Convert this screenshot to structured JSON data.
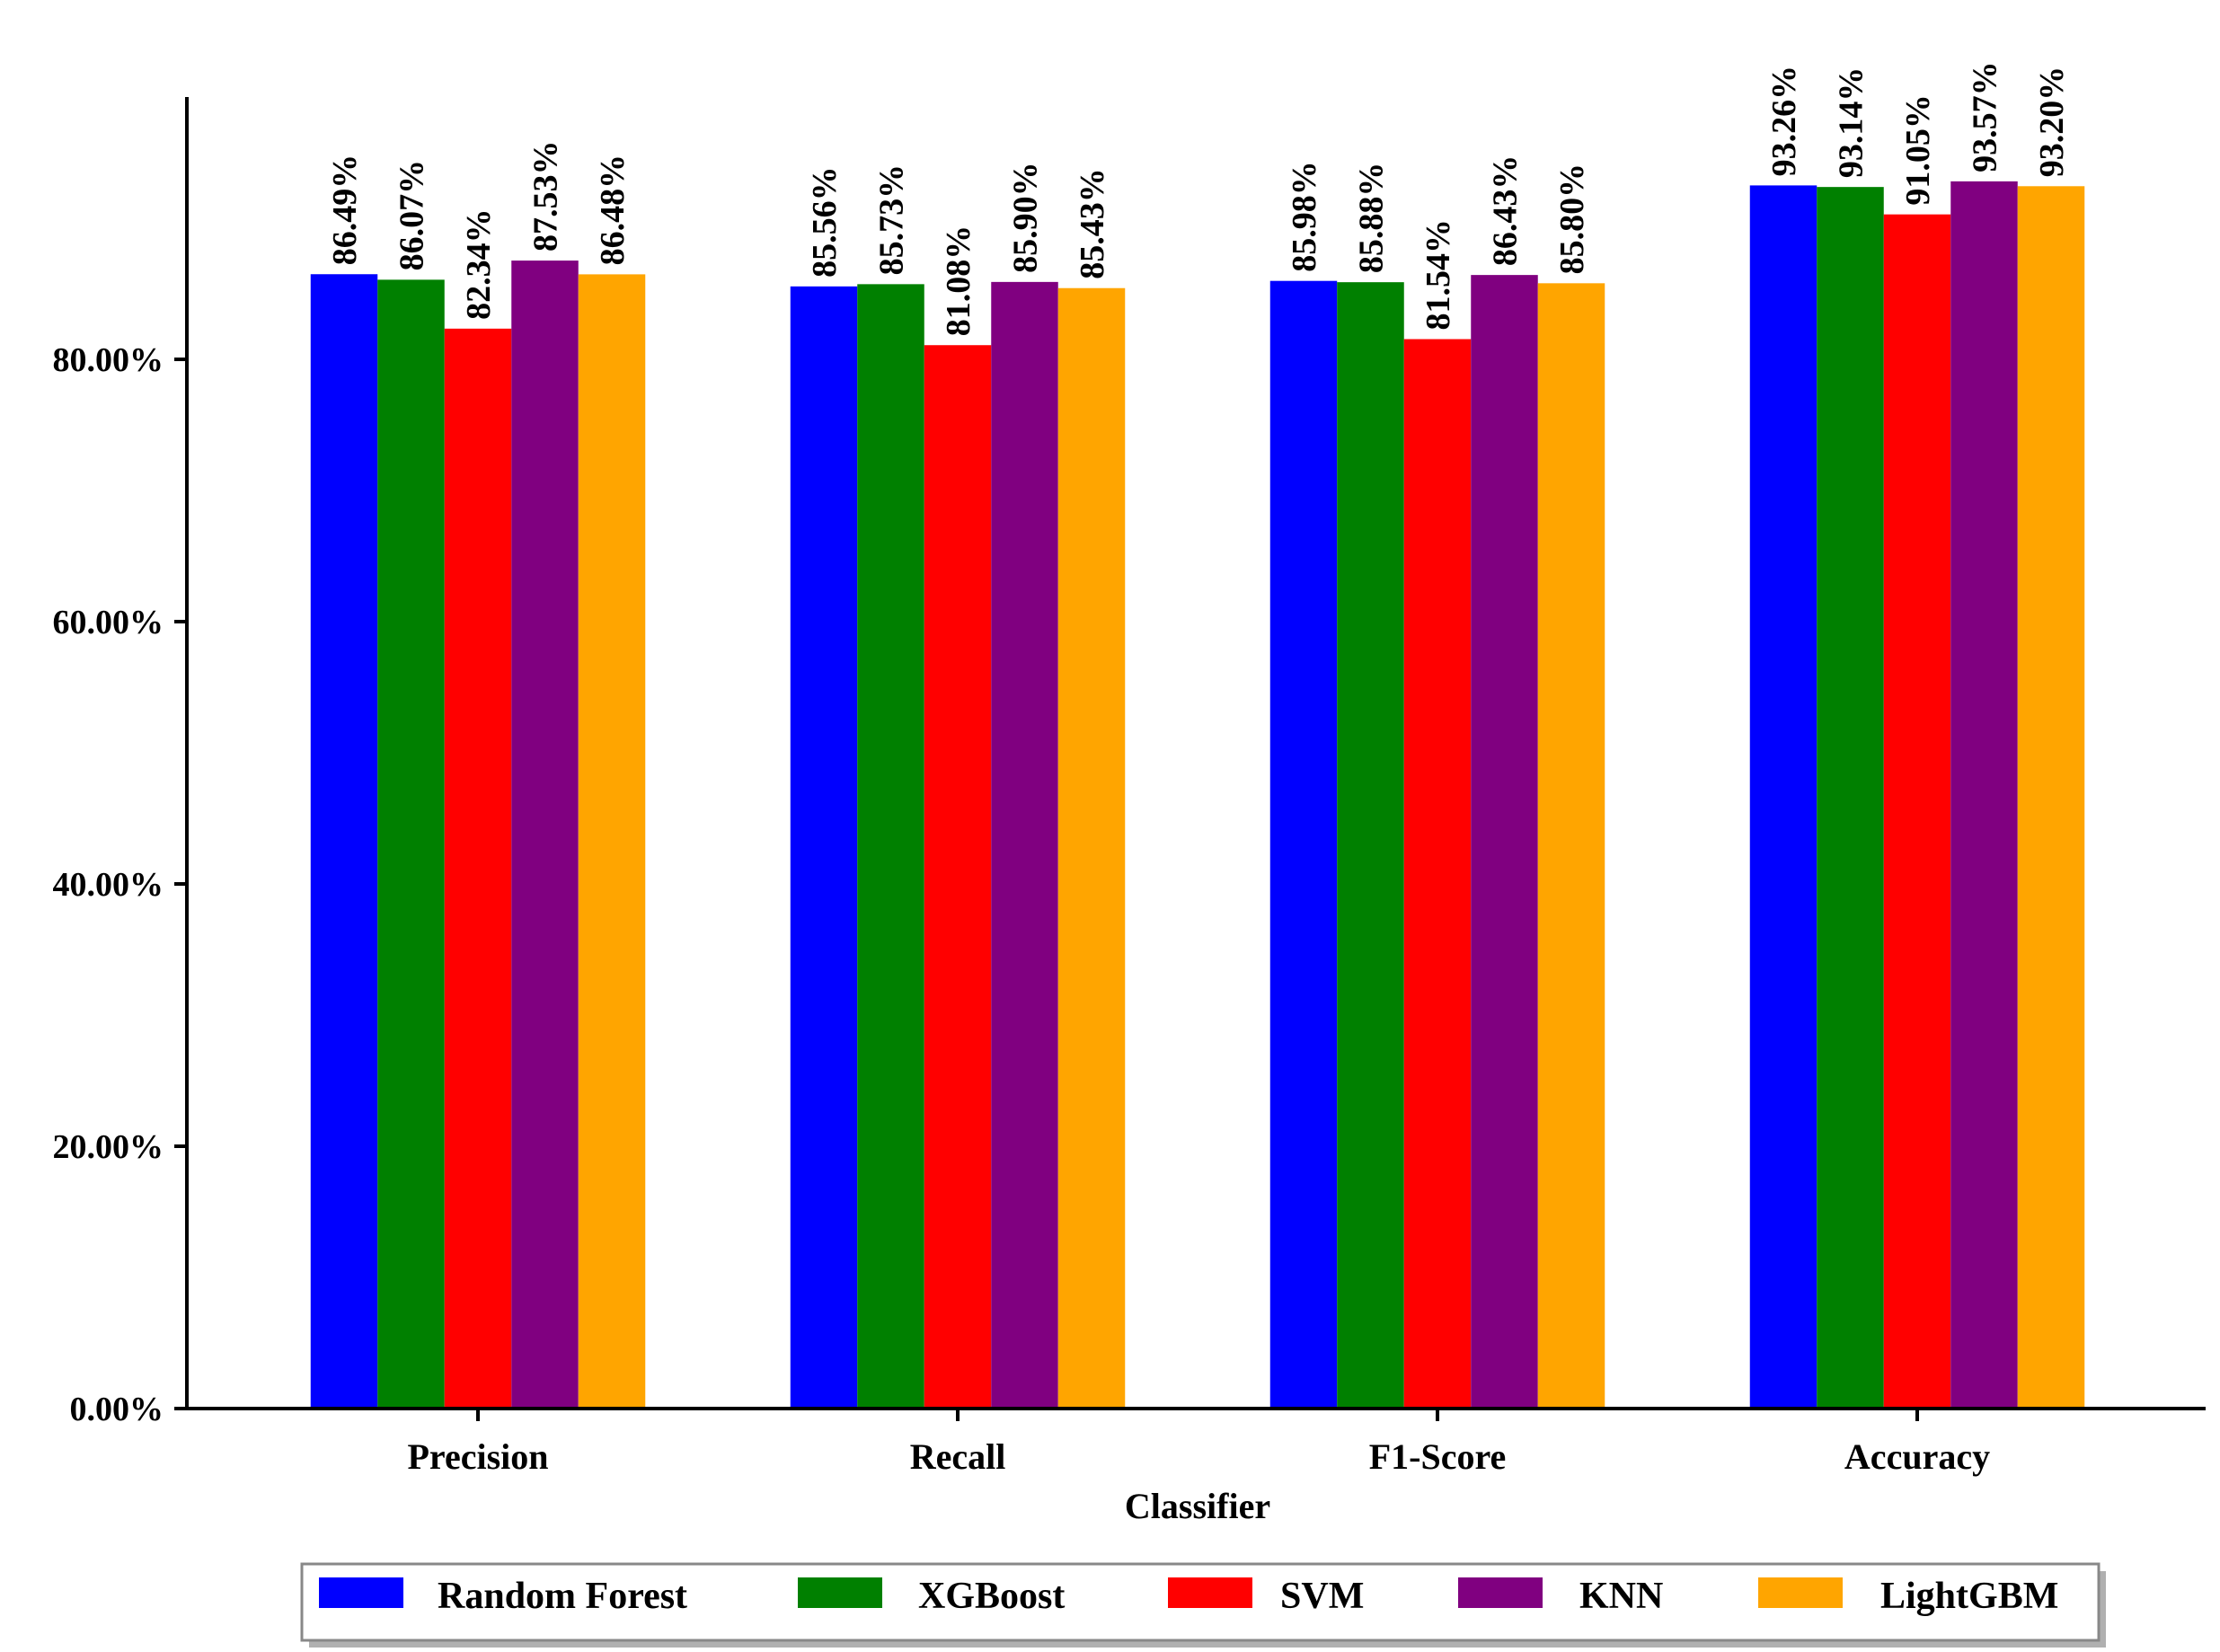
{
  "chart_data": {
    "type": "bar",
    "title": "",
    "xlabel": "Classifier",
    "ylabel": "",
    "ylim": [
      0,
      100
    ],
    "yticks": [
      0,
      20,
      40,
      60,
      80
    ],
    "ytick_labels": [
      "0.00%",
      "20.00%",
      "40.00%",
      "60.00%",
      "80.00%"
    ],
    "categories": [
      "Precision",
      "Recall",
      "F1-Score",
      "Accuracy"
    ],
    "legend_position": "bottom",
    "series": [
      {
        "name": "Random Forest",
        "color": "#0000ff",
        "values": [
          86.49,
          85.56,
          85.98,
          93.26
        ],
        "labels": [
          "86.49%",
          "85.56%",
          "85.98%",
          "93.26%"
        ]
      },
      {
        "name": "XGBoost",
        "color": "#008000",
        "values": [
          86.07,
          85.73,
          85.88,
          93.14
        ],
        "labels": [
          "86.07%",
          "85.73%",
          "85.88%",
          "93.14%"
        ]
      },
      {
        "name": "SVM",
        "color": "#ff0000",
        "values": [
          82.34,
          81.08,
          81.54,
          91.05
        ],
        "labels": [
          "82.34%",
          "81.08%",
          "81.54%",
          "91.05%"
        ]
      },
      {
        "name": "KNN",
        "color": "#800080",
        "values": [
          87.53,
          85.9,
          86.43,
          93.57
        ],
        "labels": [
          "87.53%",
          "85.90%",
          "86.43%",
          "93.57%"
        ]
      },
      {
        "name": "LightGBM",
        "color": "#ffa500",
        "values": [
          86.48,
          85.43,
          85.8,
          93.2
        ],
        "labels": [
          "86.48%",
          "85.43%",
          "85.80%",
          "93.20%"
        ]
      }
    ]
  }
}
